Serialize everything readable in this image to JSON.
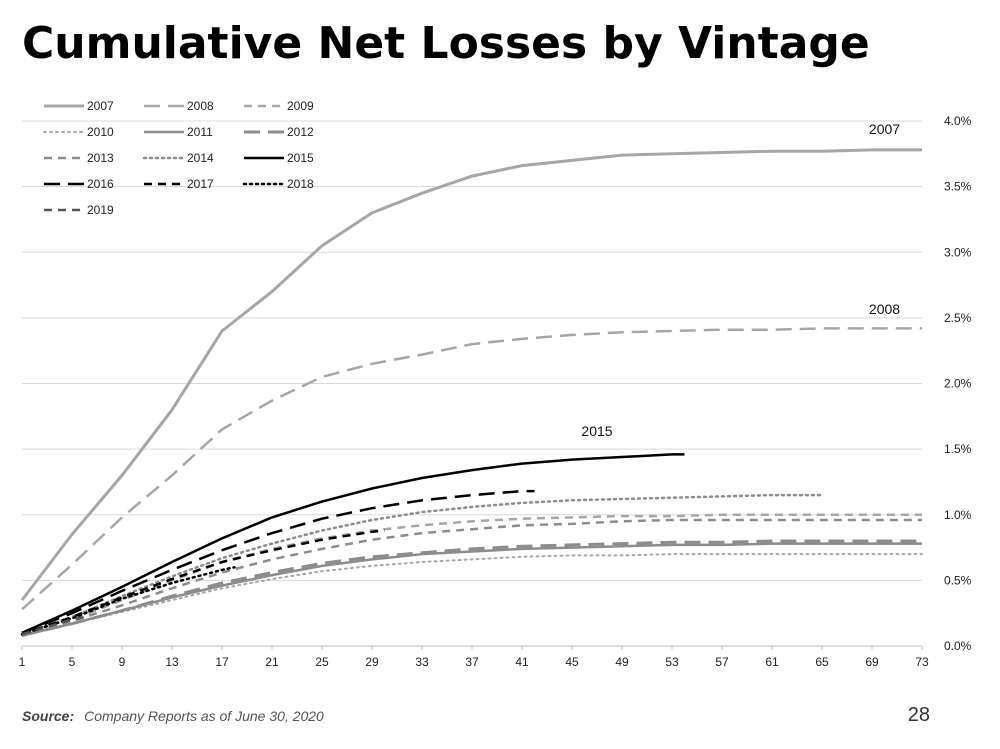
{
  "title": "Cumulative Net Losses by Vintage",
  "footer": {
    "source_label": "Source:",
    "source_text": "Company Reports as of June 30, 2020",
    "page_number": "28"
  },
  "chart_data": {
    "type": "line",
    "title": "",
    "xlabel": "",
    "ylabel": "",
    "xlim": [
      1,
      73
    ],
    "ylim": [
      0.0,
      4.0
    ],
    "x_ticks": [
      1,
      5,
      9,
      13,
      17,
      21,
      25,
      29,
      33,
      37,
      41,
      45,
      49,
      53,
      57,
      61,
      65,
      69,
      73
    ],
    "y_ticks": [
      "0.0%",
      "0.5%",
      "1.0%",
      "1.5%",
      "2.0%",
      "2.5%",
      "3.0%",
      "3.5%",
      "4.0%"
    ],
    "y_tick_values": [
      0,
      0.5,
      1.0,
      1.5,
      2.0,
      2.5,
      3.0,
      3.5,
      4.0
    ],
    "grid": "horizontal",
    "y_axis_side": "right",
    "legend": "top-left",
    "annotations": [
      {
        "text": "2007",
        "x": 70,
        "y": 3.9
      },
      {
        "text": "2008",
        "x": 70,
        "y": 2.53
      },
      {
        "text": "2015",
        "x": 47,
        "y": 1.6
      }
    ],
    "series": [
      {
        "name": "2007",
        "color": "#a6a6a6",
        "dash": "solid",
        "width": 3,
        "points": [
          [
            1,
            0.35
          ],
          [
            5,
            0.85
          ],
          [
            9,
            1.3
          ],
          [
            13,
            1.8
          ],
          [
            17,
            2.4
          ],
          [
            21,
            2.7
          ],
          [
            25,
            3.05
          ],
          [
            29,
            3.3
          ],
          [
            33,
            3.45
          ],
          [
            37,
            3.58
          ],
          [
            41,
            3.66
          ],
          [
            45,
            3.7
          ],
          [
            49,
            3.74
          ],
          [
            53,
            3.75
          ],
          [
            57,
            3.76
          ],
          [
            61,
            3.77
          ],
          [
            65,
            3.77
          ],
          [
            69,
            3.78
          ],
          [
            73,
            3.78
          ]
        ]
      },
      {
        "name": "2008",
        "color": "#a6a6a6",
        "dash": "longdash",
        "width": 2.5,
        "points": [
          [
            1,
            0.28
          ],
          [
            5,
            0.62
          ],
          [
            9,
            0.98
          ],
          [
            13,
            1.3
          ],
          [
            17,
            1.65
          ],
          [
            21,
            1.87
          ],
          [
            25,
            2.05
          ],
          [
            29,
            2.15
          ],
          [
            33,
            2.22
          ],
          [
            37,
            2.3
          ],
          [
            41,
            2.34
          ],
          [
            45,
            2.37
          ],
          [
            49,
            2.39
          ],
          [
            53,
            2.4
          ],
          [
            57,
            2.41
          ],
          [
            61,
            2.41
          ],
          [
            65,
            2.42
          ],
          [
            69,
            2.42
          ],
          [
            73,
            2.42
          ]
        ]
      },
      {
        "name": "2009",
        "color": "#a6a6a6",
        "dash": "dash",
        "width": 2.5,
        "points": [
          [
            1,
            0.08
          ],
          [
            5,
            0.2
          ],
          [
            9,
            0.35
          ],
          [
            13,
            0.5
          ],
          [
            17,
            0.64
          ],
          [
            21,
            0.74
          ],
          [
            25,
            0.82
          ],
          [
            29,
            0.88
          ],
          [
            33,
            0.92
          ],
          [
            37,
            0.95
          ],
          [
            41,
            0.97
          ],
          [
            45,
            0.98
          ],
          [
            49,
            0.99
          ],
          [
            53,
            0.99
          ],
          [
            57,
            1.0
          ],
          [
            61,
            1.0
          ],
          [
            65,
            1.0
          ],
          [
            69,
            1.0
          ],
          [
            73,
            1.0
          ]
        ]
      },
      {
        "name": "2010",
        "color": "#a6a6a6",
        "dash": "dot",
        "width": 2,
        "points": [
          [
            1,
            0.08
          ],
          [
            5,
            0.17
          ],
          [
            9,
            0.26
          ],
          [
            13,
            0.35
          ],
          [
            17,
            0.44
          ],
          [
            21,
            0.51
          ],
          [
            25,
            0.57
          ],
          [
            29,
            0.61
          ],
          [
            33,
            0.64
          ],
          [
            37,
            0.66
          ],
          [
            41,
            0.68
          ],
          [
            45,
            0.69
          ],
          [
            49,
            0.69
          ],
          [
            53,
            0.7
          ],
          [
            57,
            0.7
          ],
          [
            61,
            0.7
          ],
          [
            65,
            0.7
          ],
          [
            69,
            0.7
          ],
          [
            73,
            0.7
          ]
        ]
      },
      {
        "name": "2011",
        "color": "#8c8c8c",
        "dash": "solid",
        "width": 2.5,
        "points": [
          [
            1,
            0.08
          ],
          [
            5,
            0.17
          ],
          [
            9,
            0.27
          ],
          [
            13,
            0.37
          ],
          [
            17,
            0.46
          ],
          [
            21,
            0.54
          ],
          [
            25,
            0.61
          ],
          [
            29,
            0.66
          ],
          [
            33,
            0.7
          ],
          [
            37,
            0.72
          ],
          [
            41,
            0.74
          ],
          [
            45,
            0.75
          ],
          [
            49,
            0.76
          ],
          [
            53,
            0.77
          ],
          [
            57,
            0.77
          ],
          [
            61,
            0.78
          ],
          [
            65,
            0.78
          ],
          [
            69,
            0.78
          ],
          [
            73,
            0.78
          ]
        ]
      },
      {
        "name": "2012",
        "color": "#8c8c8c",
        "dash": "longdash",
        "width": 3,
        "points": [
          [
            1,
            0.08
          ],
          [
            5,
            0.17
          ],
          [
            9,
            0.27
          ],
          [
            13,
            0.38
          ],
          [
            17,
            0.48
          ],
          [
            21,
            0.56
          ],
          [
            25,
            0.63
          ],
          [
            29,
            0.68
          ],
          [
            33,
            0.71
          ],
          [
            37,
            0.74
          ],
          [
            41,
            0.76
          ],
          [
            45,
            0.77
          ],
          [
            49,
            0.78
          ],
          [
            53,
            0.79
          ],
          [
            57,
            0.79
          ],
          [
            61,
            0.8
          ],
          [
            65,
            0.8
          ],
          [
            69,
            0.8
          ],
          [
            73,
            0.8
          ]
        ]
      },
      {
        "name": "2013",
        "color": "#8c8c8c",
        "dash": "dash",
        "width": 2.5,
        "points": [
          [
            1,
            0.08
          ],
          [
            5,
            0.19
          ],
          [
            9,
            0.31
          ],
          [
            13,
            0.44
          ],
          [
            17,
            0.56
          ],
          [
            21,
            0.66
          ],
          [
            25,
            0.74
          ],
          [
            29,
            0.81
          ],
          [
            33,
            0.86
          ],
          [
            37,
            0.89
          ],
          [
            41,
            0.92
          ],
          [
            45,
            0.93
          ],
          [
            49,
            0.95
          ],
          [
            53,
            0.96
          ],
          [
            57,
            0.96
          ],
          [
            61,
            0.96
          ],
          [
            65,
            0.96
          ],
          [
            69,
            0.96
          ],
          [
            73,
            0.96
          ]
        ]
      },
      {
        "name": "2014",
        "color": "#8c8c8c",
        "dash": "dot",
        "width": 2.5,
        "points": [
          [
            1,
            0.09
          ],
          [
            5,
            0.22
          ],
          [
            9,
            0.38
          ],
          [
            13,
            0.53
          ],
          [
            17,
            0.67
          ],
          [
            21,
            0.78
          ],
          [
            25,
            0.88
          ],
          [
            29,
            0.96
          ],
          [
            33,
            1.02
          ],
          [
            37,
            1.06
          ],
          [
            41,
            1.09
          ],
          [
            45,
            1.11
          ],
          [
            49,
            1.12
          ],
          [
            53,
            1.13
          ],
          [
            57,
            1.14
          ],
          [
            61,
            1.15
          ],
          [
            65,
            1.15
          ]
        ]
      },
      {
        "name": "2015",
        "color": "#000000",
        "dash": "solid",
        "width": 2.5,
        "points": [
          [
            1,
            0.1
          ],
          [
            5,
            0.27
          ],
          [
            9,
            0.45
          ],
          [
            13,
            0.64
          ],
          [
            17,
            0.82
          ],
          [
            21,
            0.98
          ],
          [
            25,
            1.1
          ],
          [
            29,
            1.2
          ],
          [
            33,
            1.28
          ],
          [
            37,
            1.34
          ],
          [
            41,
            1.39
          ],
          [
            45,
            1.42
          ],
          [
            49,
            1.44
          ],
          [
            53,
            1.46
          ],
          [
            54,
            1.46
          ]
        ]
      },
      {
        "name": "2016",
        "color": "#000000",
        "dash": "longdash",
        "width": 2.5,
        "points": [
          [
            1,
            0.1
          ],
          [
            5,
            0.25
          ],
          [
            9,
            0.42
          ],
          [
            13,
            0.58
          ],
          [
            17,
            0.73
          ],
          [
            21,
            0.86
          ],
          [
            25,
            0.97
          ],
          [
            29,
            1.05
          ],
          [
            33,
            1.11
          ],
          [
            37,
            1.15
          ],
          [
            41,
            1.18
          ],
          [
            42,
            1.18
          ]
        ]
      },
      {
        "name": "2017",
        "color": "#000000",
        "dash": "dash",
        "width": 2.5,
        "points": [
          [
            1,
            0.09
          ],
          [
            5,
            0.22
          ],
          [
            9,
            0.37
          ],
          [
            13,
            0.51
          ],
          [
            17,
            0.64
          ],
          [
            21,
            0.73
          ],
          [
            25,
            0.81
          ],
          [
            29,
            0.87
          ],
          [
            30,
            0.88
          ]
        ]
      },
      {
        "name": "2018",
        "color": "#000000",
        "dash": "dot",
        "width": 2.5,
        "points": [
          [
            1,
            0.09
          ],
          [
            5,
            0.21
          ],
          [
            9,
            0.36
          ],
          [
            13,
            0.48
          ],
          [
            17,
            0.58
          ],
          [
            18,
            0.6
          ]
        ]
      },
      {
        "name": "2019",
        "color": "#555555",
        "dash": "dash",
        "width": 2.5,
        "points": [
          [
            1,
            0.09
          ],
          [
            5,
            0.2
          ],
          [
            6,
            0.22
          ]
        ]
      }
    ]
  }
}
